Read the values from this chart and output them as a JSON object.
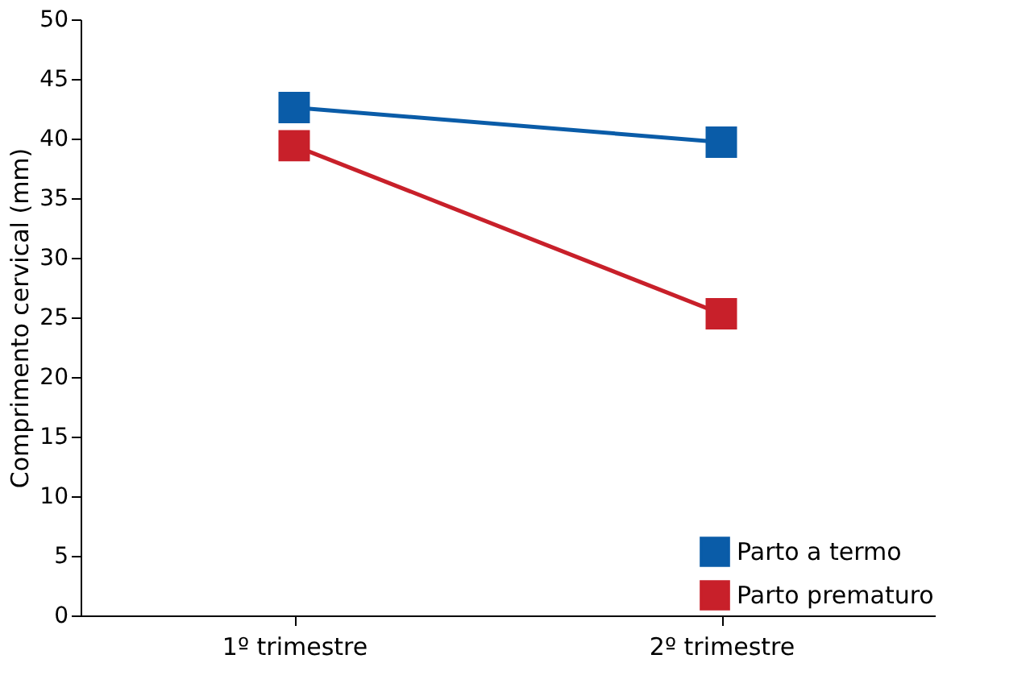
{
  "chart_data": {
    "type": "line",
    "ylabel": "Comprimento cervical (mm)",
    "categories": [
      "1º trimestre",
      "2º trimestre"
    ],
    "series": [
      {
        "name": "Parto a termo",
        "color": "#0a5ca8",
        "values": [
          42.6,
          39.7
        ]
      },
      {
        "name": "Parto prematuro",
        "color": "#c8202a",
        "values": [
          39.4,
          25.3
        ]
      }
    ],
    "ylim": [
      0,
      50
    ],
    "yticks": [
      0,
      5,
      10,
      15,
      20,
      25,
      30,
      35,
      40,
      45,
      50
    ],
    "grid": false,
    "legend": "bottom right",
    "marker": "square",
    "line_style": "solid"
  }
}
